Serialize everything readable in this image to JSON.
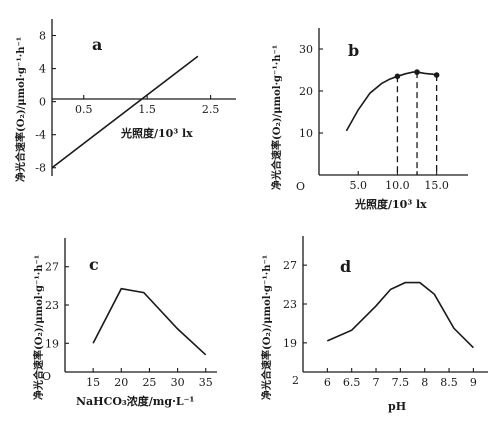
{
  "chart_data": [
    {
      "panel": "a",
      "type": "line",
      "xlabel": "光照度/10³ lx",
      "ylabel": "净光合速率(O₂)/μmol·g⁻¹·h⁻¹",
      "xlim": [
        0,
        2.9
      ],
      "ylim": [
        -9,
        10
      ],
      "xticks": [
        0.5,
        1.5,
        2.5
      ],
      "yticks": [
        -8,
        -4,
        0,
        4,
        8
      ],
      "ytick_labels": [
        "-8",
        "-4",
        "0",
        "4",
        "8"
      ],
      "x": [
        0,
        2.3
      ],
      "y": [
        -8,
        5.5
      ]
    },
    {
      "panel": "b",
      "type": "line",
      "xlabel": "光照度/10³ lx",
      "ylabel": "净光合速率(O₂)/μmol·g⁻¹·h⁻¹",
      "origin_label": "O",
      "xlim": [
        0,
        19
      ],
      "ylim": [
        0,
        35
      ],
      "xticks": [
        5,
        10,
        12.5,
        15
      ],
      "xtick_labels": [
        "5.0",
        "10.0",
        "",
        "15.0"
      ],
      "yticks": [
        10,
        20,
        30
      ],
      "x": [
        3.5,
        5,
        6.5,
        8,
        9,
        10,
        11,
        12,
        12.5,
        13.5,
        14.5,
        15
      ],
      "y": [
        10.5,
        15.5,
        19.5,
        21.8,
        22.8,
        23.5,
        24.1,
        24.5,
        24.5,
        24.2,
        24,
        23.8
      ],
      "markers": [
        {
          "x": 10,
          "y": 23.5
        },
        {
          "x": 12.5,
          "y": 24.5
        },
        {
          "x": 15,
          "y": 23.8
        }
      ]
    },
    {
      "panel": "c",
      "type": "line",
      "xlabel": "NaHCO₃浓度/mg·L⁻¹",
      "ylabel": "净光合速率(O₂)/μmol·g⁻¹·h⁻¹",
      "origin_label": "O",
      "xlim": [
        10,
        37
      ],
      "ylim": [
        16,
        30
      ],
      "xticks": [
        15,
        20,
        25,
        30,
        35
      ],
      "yticks": [
        19,
        23,
        27
      ],
      "x": [
        15,
        20,
        24,
        30,
        35
      ],
      "y": [
        19,
        24.7,
        24.3,
        20.5,
        17.8
      ]
    },
    {
      "panel": "d",
      "type": "line",
      "xlabel": "pH",
      "ylabel": "净光合速率(O₂)/μmol·g⁻¹·h⁻¹",
      "origin_label": "2",
      "xlim": [
        5.5,
        9.3
      ],
      "ylim": [
        16,
        30
      ],
      "xticks": [
        6,
        6.5,
        7,
        7.5,
        8,
        8.5,
        9
      ],
      "yticks": [
        19,
        23,
        27
      ],
      "x": [
        6,
        6.5,
        7,
        7.3,
        7.6,
        7.9,
        8.2,
        8.6,
        9
      ],
      "y": [
        19.2,
        20.3,
        22.8,
        24.5,
        25.2,
        25.2,
        24,
        20.5,
        18.5
      ]
    }
  ]
}
